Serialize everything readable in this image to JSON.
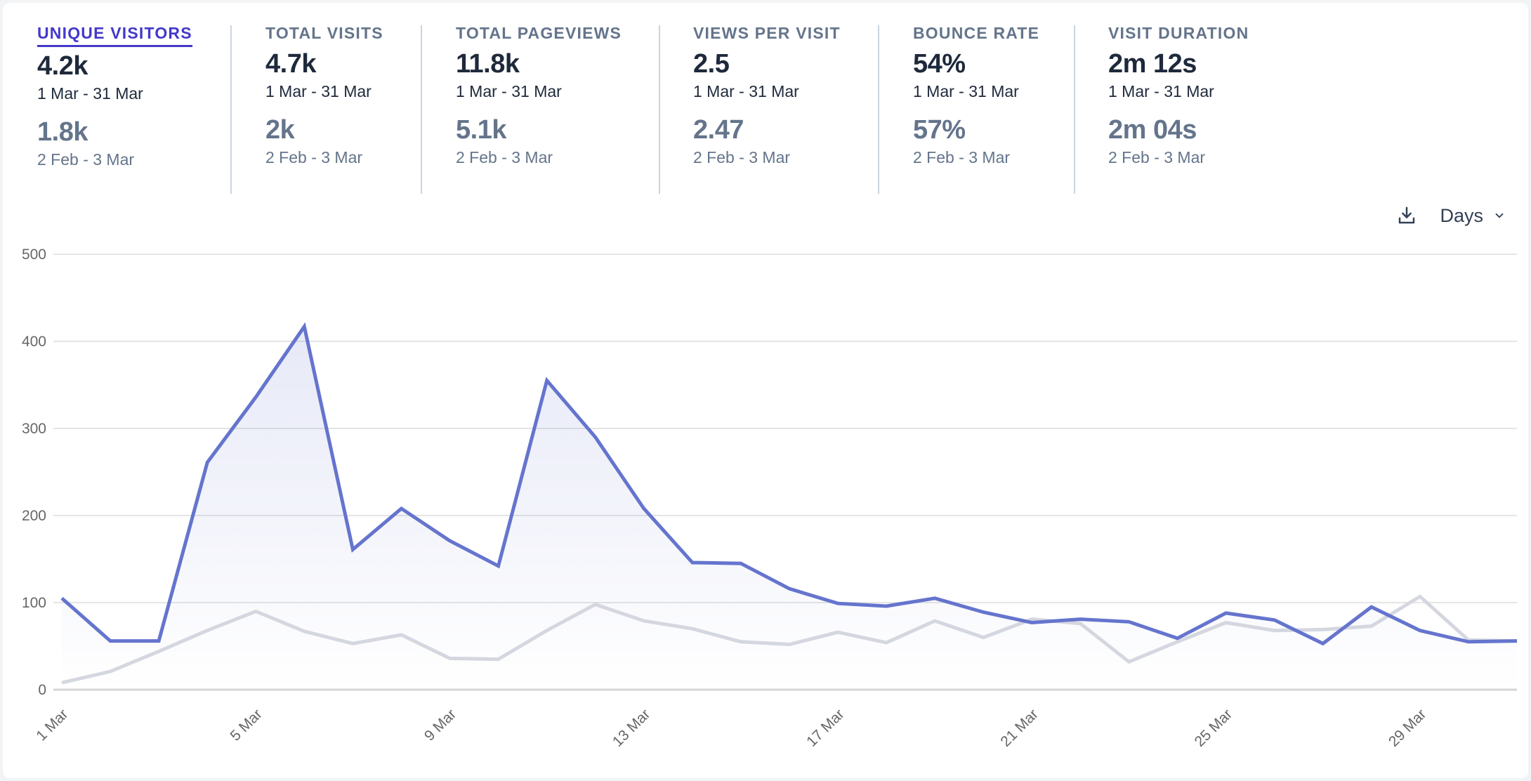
{
  "metrics": [
    {
      "label": "Unique visitors",
      "value": "4.2k",
      "range": "1 Mar - 31 Mar",
      "prev_value": "1.8k",
      "prev_range": "2 Feb - 3 Mar",
      "active": true
    },
    {
      "label": "Total visits",
      "value": "4.7k",
      "range": "1 Mar - 31 Mar",
      "prev_value": "2k",
      "prev_range": "2 Feb - 3 Mar",
      "active": false
    },
    {
      "label": "Total pageviews",
      "value": "11.8k",
      "range": "1 Mar - 31 Mar",
      "prev_value": "5.1k",
      "prev_range": "2 Feb - 3 Mar",
      "active": false
    },
    {
      "label": "Views per visit",
      "value": "2.5",
      "range": "1 Mar - 31 Mar",
      "prev_value": "2.47",
      "prev_range": "2 Feb - 3 Mar",
      "active": false
    },
    {
      "label": "Bounce rate",
      "value": "54%",
      "range": "1 Mar - 31 Mar",
      "prev_value": "57%",
      "prev_range": "2 Feb - 3 Mar",
      "active": false
    },
    {
      "label": "Visit duration",
      "value": "2m 12s",
      "range": "1 Mar - 31 Mar",
      "prev_value": "2m 04s",
      "prev_range": "2 Feb - 3 Mar",
      "active": false
    }
  ],
  "toolbar": {
    "download_icon": "download-icon",
    "interval_label": "Days",
    "interval_icon": "chevron-down-icon"
  },
  "colors": {
    "accent": "#4338ca",
    "current_line": "#6574cd",
    "previous_line": "#d5d7e0",
    "grid": "#e5e5e5"
  },
  "chart_data": {
    "type": "line",
    "title": "",
    "xlabel": "",
    "ylabel": "",
    "ylim": [
      0,
      500
    ],
    "yticks": [
      0,
      100,
      200,
      300,
      400,
      500
    ],
    "grid": true,
    "x": [
      "1 Mar",
      "2 Mar",
      "3 Mar",
      "4 Mar",
      "5 Mar",
      "6 Mar",
      "7 Mar",
      "8 Mar",
      "9 Mar",
      "10 Mar",
      "11 Mar",
      "12 Mar",
      "13 Mar",
      "14 Mar",
      "15 Mar",
      "16 Mar",
      "17 Mar",
      "18 Mar",
      "19 Mar",
      "20 Mar",
      "21 Mar",
      "22 Mar",
      "23 Mar",
      "24 Mar",
      "25 Mar",
      "26 Mar",
      "27 Mar",
      "28 Mar",
      "29 Mar",
      "30 Mar",
      "31 Mar"
    ],
    "xtick_labels": [
      "1 Mar",
      "5 Mar",
      "9 Mar",
      "13 Mar",
      "17 Mar",
      "21 Mar",
      "25 Mar",
      "29 Mar"
    ],
    "series": [
      {
        "name": "Unique visitors (1 Mar - 31 Mar)",
        "filled": true,
        "values": [
          105,
          56,
          56,
          261,
          336,
          417,
          161,
          208,
          171,
          142,
          355,
          290,
          208,
          146,
          145,
          116,
          99,
          96,
          105,
          89,
          77,
          81,
          78,
          59,
          88,
          80,
          53,
          95,
          68,
          55,
          56
        ]
      },
      {
        "name": "Unique visitors (2 Feb - 3 Mar)",
        "filled": false,
        "values": [
          8,
          21,
          44,
          68,
          90,
          67,
          53,
          63,
          36,
          35,
          68,
          98,
          79,
          70,
          55,
          52,
          66,
          54,
          79,
          60,
          81,
          76,
          32,
          55,
          77,
          68,
          69,
          73,
          107,
          57,
          56
        ]
      }
    ]
  }
}
